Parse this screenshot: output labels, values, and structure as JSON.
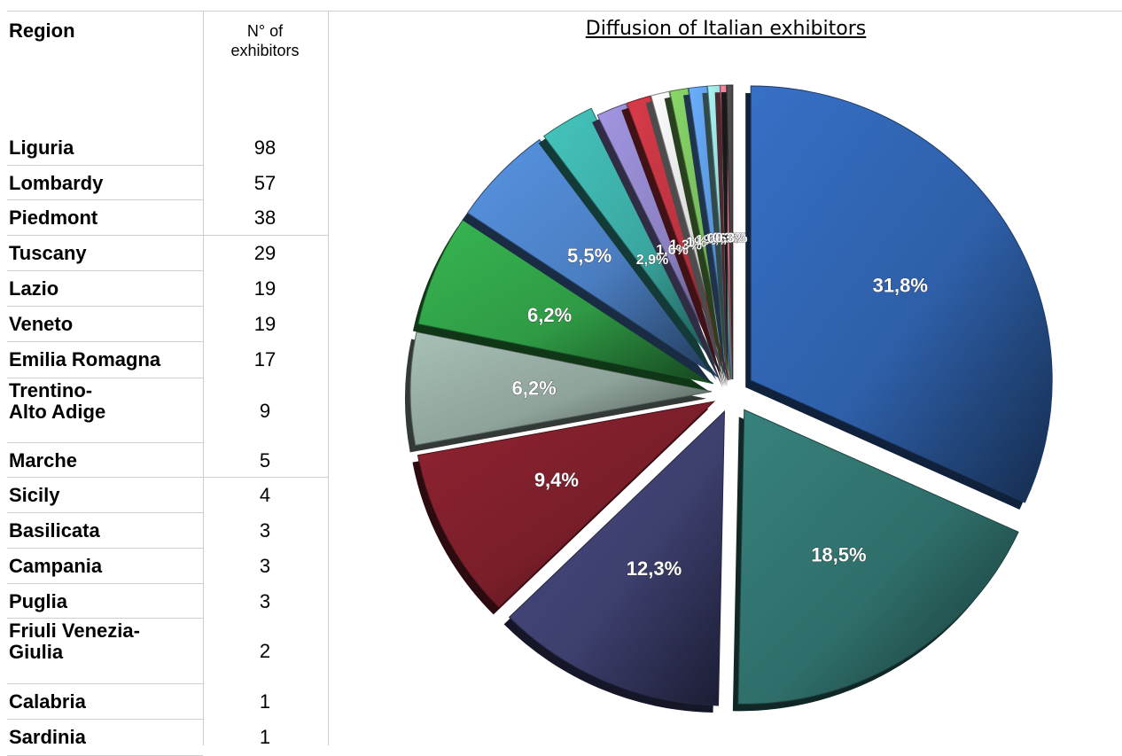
{
  "table": {
    "header_region": "Region",
    "header_count_line1": "N° of",
    "header_count_line2": "exhibitors",
    "rows": [
      {
        "region": [
          "Liguria"
        ],
        "count": "98"
      },
      {
        "region": [
          "Lombardy"
        ],
        "count": "57"
      },
      {
        "region": [
          "Piedmont"
        ],
        "count": "38"
      },
      {
        "region": [
          "Tuscany"
        ],
        "count": "29"
      },
      {
        "region": [
          "Lazio"
        ],
        "count": "19"
      },
      {
        "region": [
          "Veneto"
        ],
        "count": "19"
      },
      {
        "region": [
          "Emilia Romagna"
        ],
        "count": "17"
      },
      {
        "region": [
          "Trentino-",
          "Alto Adige"
        ],
        "count": "9"
      },
      {
        "region": [
          "Marche"
        ],
        "count": "5"
      },
      {
        "region": [
          "Sicily"
        ],
        "count": "4"
      },
      {
        "region": [
          "Basilicata"
        ],
        "count": "3"
      },
      {
        "region": [
          "Campania"
        ],
        "count": "3"
      },
      {
        "region": [
          "Puglia"
        ],
        "count": "3"
      },
      {
        "region": [
          "Friuli Venezia-",
          "Giulia"
        ],
        "count": "2"
      },
      {
        "region": [
          "Calabria"
        ],
        "count": "1"
      },
      {
        "region": [
          "Sardinia"
        ],
        "count": "1"
      }
    ]
  },
  "chart_data": {
    "type": "pie",
    "title": "Diffusion of Italian exhibitors",
    "categories": [
      "Liguria",
      "Lombardy",
      "Piedmont",
      "Tuscany",
      "Lazio",
      "Veneto",
      "Emilia Romagna",
      "Trentino-Alto Adige",
      "Marche",
      "Sicily",
      "Basilicata",
      "Campania",
      "Puglia",
      "Friuli Venezia-Giulia",
      "Calabria",
      "Sardinia"
    ],
    "values": [
      98,
      57,
      38,
      29,
      19,
      19,
      17,
      9,
      5,
      4,
      3,
      3,
      3,
      2,
      1,
      1
    ],
    "data_labels": [
      "31,8%",
      "18,5%",
      "12,3%",
      "9,4%",
      "6,2%",
      "6,2%",
      "5,5%",
      "2,9%",
      "1,6%",
      "1,3%",
      "1%",
      "1%",
      "1%",
      "0,6%",
      "0,3%",
      "0,3%"
    ],
    "exploded": true,
    "legend": "none",
    "colors": [
      "#2e5fa8",
      "#2f6e6a",
      "#3d3f6e",
      "#7a1e2a",
      "#8ea39a",
      "#2f9a45",
      "#4a7dc0",
      "#3aa7a0",
      "#8a7fc0",
      "#b8323e",
      "#d8d8d8",
      "#74b75a",
      "#5a94d8",
      "#8fd0d0",
      "#e2738a",
      "#4a4646"
    ]
  }
}
